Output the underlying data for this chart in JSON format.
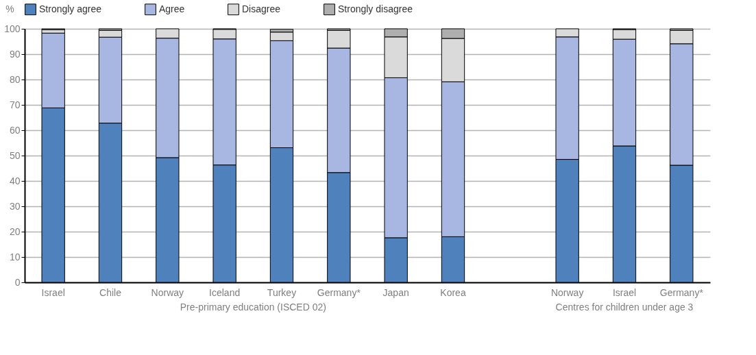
{
  "chart_data": {
    "type": "bar",
    "stacked": true,
    "ylabel": "%",
    "ylim": [
      0,
      100
    ],
    "yticks": [
      0,
      10,
      20,
      30,
      40,
      50,
      60,
      70,
      80,
      90,
      100
    ],
    "grid": "y",
    "legend": "top",
    "categories": [
      "Israel",
      "Chile",
      "Norway",
      "Iceland",
      "Turkey",
      "Germany*",
      "Japan",
      "Korea",
      null,
      "Norway",
      "Israel",
      "Germany*"
    ],
    "series": [
      {
        "name": "Strongly agree",
        "color": "#4f81bd",
        "values": [
          68.8,
          62.8,
          49.2,
          46.3,
          53.1,
          43.3,
          17.6,
          18.0,
          null,
          48.5,
          53.8,
          46.2
        ]
      },
      {
        "name": "Agree",
        "color": "#a7b7e1",
        "values": [
          29.5,
          33.9,
          47.1,
          49.7,
          42.2,
          49.1,
          63.1,
          61.1,
          null,
          48.3,
          42.1,
          47.9
        ]
      },
      {
        "name": "Disagree",
        "color": "#dadada",
        "values": [
          1.3,
          2.7,
          3.7,
          3.8,
          3.4,
          7.0,
          16.1,
          17.1,
          null,
          3.2,
          3.8,
          5.3
        ]
      },
      {
        "name": "Strongly disagree",
        "color": "#aeaeae",
        "values": [
          0.4,
          0.6,
          null,
          0.2,
          1.1,
          0.6,
          3.2,
          3.8,
          null,
          null,
          0.3,
          0.6
        ]
      }
    ],
    "annotations": [
      "Pre-primary education (ISCED 02)",
      "Centres for children under age 3"
    ]
  }
}
